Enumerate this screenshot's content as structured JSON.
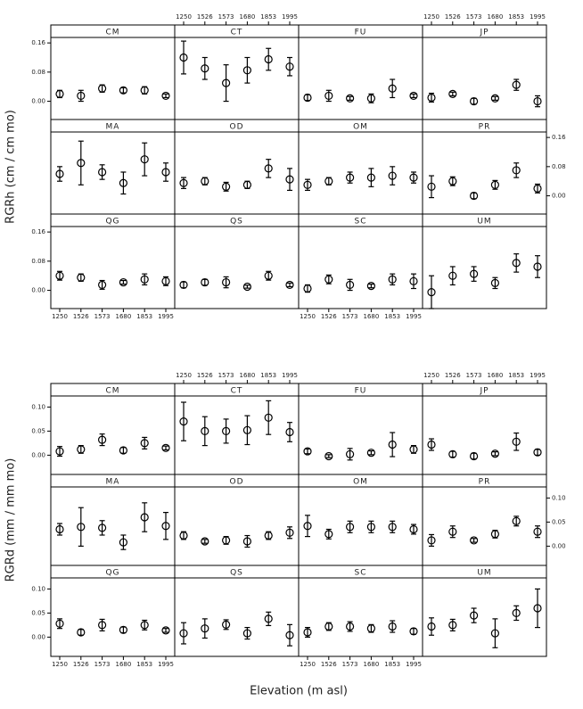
{
  "xlabel": "Elevation (m asl)",
  "chart_data": [
    {
      "type": "scatter",
      "ylabel": "RGRh (cm / cm mo)",
      "categories": [
        "1250",
        "1526",
        "1573",
        "1680",
        "1853",
        "1995"
      ],
      "ylim": [
        -0.05,
        0.175
      ],
      "yticks": [
        {
          "value": 0,
          "label": "0.00"
        },
        0.08,
        0.16
      ],
      "panels": [
        {
          "name": "CM",
          "values": [
            0.02,
            0.015,
            0.035,
            0.03,
            0.03,
            0.015
          ],
          "errors": [
            0.01,
            0.015,
            0.01,
            0.007,
            0.01,
            0.005
          ]
        },
        {
          "name": "CT",
          "values": [
            0.12,
            0.09,
            0.05,
            0.085,
            0.115,
            0.095
          ],
          "errors": [
            0.045,
            0.03,
            0.05,
            0.035,
            0.03,
            0.025
          ]
        },
        {
          "name": "FU",
          "values": [
            0.01,
            0.015,
            0.008,
            0.008,
            0.035,
            0.015
          ],
          "errors": [
            0.008,
            0.015,
            0.005,
            0.012,
            0.025,
            0.005
          ]
        },
        {
          "name": "JP",
          "values": [
            0.01,
            0.02,
            0.0,
            0.008,
            0.045,
            0.0
          ],
          "errors": [
            0.012,
            0.005,
            0.008,
            0.005,
            0.015,
            0.015
          ]
        },
        {
          "name": "MA",
          "values": [
            0.06,
            0.09,
            0.065,
            0.035,
            0.1,
            0.065
          ],
          "errors": [
            0.02,
            0.06,
            0.02,
            0.03,
            0.045,
            0.025
          ]
        },
        {
          "name": "OD",
          "values": [
            0.035,
            0.04,
            0.025,
            0.03,
            0.075,
            0.045
          ],
          "errors": [
            0.015,
            0.01,
            0.012,
            0.01,
            0.025,
            0.03
          ]
        },
        {
          "name": "OM",
          "values": [
            0.03,
            0.04,
            0.05,
            0.05,
            0.055,
            0.05
          ],
          "errors": [
            0.015,
            0.01,
            0.015,
            0.025,
            0.025,
            0.015
          ]
        },
        {
          "name": "PR",
          "values": [
            0.025,
            0.04,
            0.0,
            0.03,
            0.07,
            0.02
          ],
          "errors": [
            0.03,
            0.012,
            0.008,
            0.012,
            0.02,
            0.012
          ]
        },
        {
          "name": "QG",
          "values": [
            0.04,
            0.035,
            0.015,
            0.022,
            0.03,
            0.025
          ],
          "errors": [
            0.012,
            0.01,
            0.012,
            0.005,
            0.015,
            0.012
          ]
        },
        {
          "name": "QS",
          "values": [
            0.015,
            0.022,
            0.022,
            0.01,
            0.04,
            0.015
          ],
          "errors": [
            0.008,
            0.008,
            0.015,
            0.004,
            0.012,
            0.005
          ]
        },
        {
          "name": "SC",
          "values": [
            0.005,
            0.03,
            0.015,
            0.012,
            0.03,
            0.025
          ],
          "errors": [
            0.01,
            0.012,
            0.015,
            0.005,
            0.015,
            0.02
          ]
        },
        {
          "name": "UM",
          "values": [
            -0.005,
            0.04,
            0.045,
            0.02,
            0.075,
            0.065
          ],
          "errors": [
            0.045,
            0.025,
            0.02,
            0.015,
            0.025,
            0.03
          ]
        }
      ]
    },
    {
      "type": "scatter",
      "ylabel": "RGRd (mm / mm mo)",
      "categories": [
        "1250",
        "1526",
        "1573",
        "1680",
        "1853",
        "1995"
      ],
      "ylim": [
        -0.04,
        0.123
      ],
      "yticks": [
        {
          "value": 0,
          "label": "0.00"
        },
        0.05,
        {
          "value": 0.1,
          "label": "0.10"
        }
      ],
      "panels": [
        {
          "name": "CM",
          "values": [
            0.008,
            0.012,
            0.032,
            0.01,
            0.025,
            0.015
          ],
          "errors": [
            0.01,
            0.008,
            0.012,
            0.006,
            0.012,
            0.004
          ]
        },
        {
          "name": "CT",
          "values": [
            0.07,
            0.05,
            0.05,
            0.052,
            0.078,
            0.048
          ],
          "errors": [
            0.04,
            0.03,
            0.025,
            0.03,
            0.035,
            0.02
          ]
        },
        {
          "name": "FU",
          "values": [
            0.008,
            -0.002,
            0.002,
            0.005,
            0.022,
            0.012
          ],
          "errors": [
            0.005,
            0.003,
            0.012,
            0.004,
            0.025,
            0.008
          ]
        },
        {
          "name": "JP",
          "values": [
            0.022,
            0.002,
            -0.002,
            0.003,
            0.028,
            0.006
          ],
          "errors": [
            0.012,
            0.006,
            0.006,
            0.004,
            0.018,
            0.006
          ]
        },
        {
          "name": "MA",
          "values": [
            0.035,
            0.04,
            0.038,
            0.008,
            0.06,
            0.042
          ],
          "errors": [
            0.012,
            0.04,
            0.015,
            0.015,
            0.03,
            0.028
          ]
        },
        {
          "name": "OD",
          "values": [
            0.022,
            0.01,
            0.012,
            0.01,
            0.022,
            0.028
          ],
          "errors": [
            0.008,
            0.004,
            0.008,
            0.012,
            0.008,
            0.012
          ]
        },
        {
          "name": "OM",
          "values": [
            0.042,
            0.025,
            0.04,
            0.04,
            0.04,
            0.035
          ],
          "errors": [
            0.022,
            0.01,
            0.012,
            0.012,
            0.012,
            0.01
          ]
        },
        {
          "name": "PR",
          "values": [
            0.012,
            0.03,
            0.012,
            0.025,
            0.052,
            0.03
          ],
          "errors": [
            0.012,
            0.012,
            0.004,
            0.008,
            0.01,
            0.012
          ]
        },
        {
          "name": "QG",
          "values": [
            0.028,
            0.01,
            0.025,
            0.015,
            0.025,
            0.014
          ],
          "errors": [
            0.01,
            0.006,
            0.012,
            0.006,
            0.01,
            0.004
          ]
        },
        {
          "name": "QS",
          "values": [
            0.008,
            0.018,
            0.026,
            0.008,
            0.038,
            0.004
          ],
          "errors": [
            0.022,
            0.02,
            0.01,
            0.012,
            0.014,
            0.022
          ]
        },
        {
          "name": "SC",
          "values": [
            0.01,
            0.022,
            0.022,
            0.018,
            0.022,
            0.012
          ],
          "errors": [
            0.01,
            0.008,
            0.01,
            0.008,
            0.012,
            0.006
          ]
        },
        {
          "name": "UM",
          "values": [
            0.022,
            0.025,
            0.045,
            0.008,
            0.05,
            0.06
          ],
          "errors": [
            0.018,
            0.012,
            0.015,
            0.03,
            0.015,
            0.04
          ]
        }
      ]
    }
  ]
}
